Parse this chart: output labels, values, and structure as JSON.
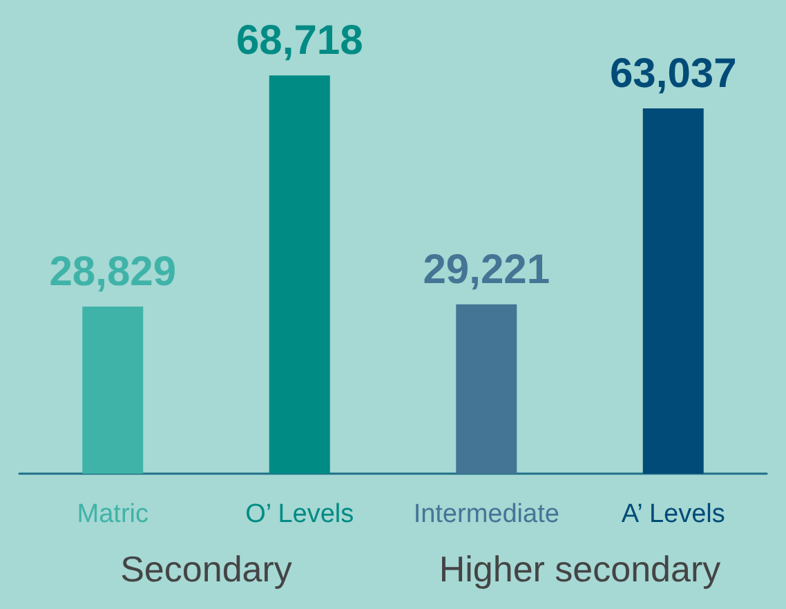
{
  "chart_data": {
    "type": "bar",
    "categories": [
      "Matric",
      "O’ Levels",
      "Intermediate",
      "A’ Levels"
    ],
    "values": [
      28829,
      68718,
      29221,
      63037
    ],
    "colors": [
      "#40b3a8",
      "#008b84",
      "#457595",
      "#004b77"
    ],
    "value_labels": [
      "28,829",
      "68,718",
      "29,221",
      "63,037"
    ],
    "annotations": [
      "Secondary",
      "Higher secondary"
    ]
  }
}
